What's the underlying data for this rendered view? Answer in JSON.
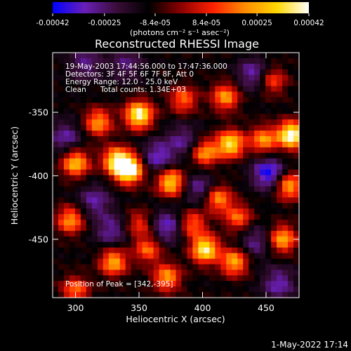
{
  "colorbar": {
    "tick_labels": [
      "-0.00042",
      "-0.00025",
      "-8.4e-05",
      "8.4e-05",
      "0.00025",
      "0.00042"
    ],
    "tick_values": [
      -0.00042,
      -0.00025,
      -8.4e-05,
      8.4e-05,
      0.00025,
      0.00042
    ],
    "range": [
      -0.00042,
      0.00042
    ],
    "units_label": "(photons cm⁻² s⁻¹ asec⁻²)",
    "colormap": [
      "#0000ff",
      "#6a1fb8",
      "#3a0d38",
      "#000000",
      "#8a0000",
      "#ff2000",
      "#ff8c00",
      "#ffd700",
      "#ffffff"
    ]
  },
  "chart_data": {
    "type": "heatmap",
    "title": "Reconstructed RHESSI Image",
    "xlabel": "Heliocentric X (arcsec)",
    "ylabel": "Heliocentric Y (arcsec)",
    "xlim": [
      282,
      476
    ],
    "ylim": [
      -496,
      -303
    ],
    "x_ticks": [
      300,
      350,
      400,
      450
    ],
    "x_tick_labels": [
      "300",
      "350",
      "400",
      "450"
    ],
    "y_ticks": [
      -350,
      -400,
      -450
    ],
    "y_tick_labels": [
      "-350",
      "-400",
      "-450"
    ],
    "grid": false,
    "annotations": {
      "time_range": "19-May-2003 17:44:56.000 to 17:47:36.000",
      "detectors": "Detectors: 3F 4F 5F 6F 7F 8F, Att 0",
      "energy": "Energy Range: 12.0 - 25.0 keV",
      "method": "Clean",
      "counts": "Total counts: 1.34E+03",
      "peak": "Position of Peak = [342,-395]"
    },
    "peak_position": [
      342,
      -395
    ],
    "hotspots": [
      {
        "x": 342,
        "y": -395,
        "v": 1.0
      },
      {
        "x": 332,
        "y": -388,
        "v": 0.7
      },
      {
        "x": 350,
        "y": -352,
        "v": 0.85
      },
      {
        "x": 300,
        "y": -390,
        "v": 0.65
      },
      {
        "x": 296,
        "y": -435,
        "v": 0.55
      },
      {
        "x": 318,
        "y": -358,
        "v": 0.55
      },
      {
        "x": 375,
        "y": -405,
        "v": 0.7
      },
      {
        "x": 385,
        "y": -340,
        "v": 0.45
      },
      {
        "x": 418,
        "y": -338,
        "v": 0.55
      },
      {
        "x": 470,
        "y": -368,
        "v": 0.9
      },
      {
        "x": 448,
        "y": -372,
        "v": 0.55
      },
      {
        "x": 422,
        "y": -375,
        "v": 0.75
      },
      {
        "x": 402,
        "y": -382,
        "v": 0.55
      },
      {
        "x": 412,
        "y": -418,
        "v": 0.55
      },
      {
        "x": 392,
        "y": -438,
        "v": 0.45
      },
      {
        "x": 428,
        "y": -433,
        "v": 0.45
      },
      {
        "x": 468,
        "y": -408,
        "v": 0.6
      },
      {
        "x": 463,
        "y": -450,
        "v": 0.6
      },
      {
        "x": 350,
        "y": -438,
        "v": 0.35
      },
      {
        "x": 402,
        "y": -458,
        "v": 0.8
      },
      {
        "x": 425,
        "y": -468,
        "v": 0.6
      },
      {
        "x": 330,
        "y": -468,
        "v": 0.6
      },
      {
        "x": 372,
        "y": -480,
        "v": 0.55
      },
      {
        "x": 300,
        "y": -490,
        "v": 0.45
      },
      {
        "x": 357,
        "y": -458,
        "v": 0.45
      },
      {
        "x": 455,
        "y": -325,
        "v": 0.4
      }
    ],
    "coldspots": [
      {
        "x": 365,
        "y": -385,
        "v": -0.6
      },
      {
        "x": 452,
        "y": -398,
        "v": -0.8
      },
      {
        "x": 372,
        "y": -440,
        "v": -0.6
      },
      {
        "x": 440,
        "y": -320,
        "v": -0.55
      },
      {
        "x": 292,
        "y": -370,
        "v": -0.5
      },
      {
        "x": 328,
        "y": -443,
        "v": -0.5
      },
      {
        "x": 460,
        "y": -485,
        "v": -0.55
      },
      {
        "x": 315,
        "y": -420,
        "v": -0.5
      },
      {
        "x": 308,
        "y": -312,
        "v": -0.45
      },
      {
        "x": 398,
        "y": -410,
        "v": -0.5
      },
      {
        "x": 442,
        "y": -452,
        "v": -0.45
      },
      {
        "x": 385,
        "y": -372,
        "v": -0.45
      },
      {
        "x": 340,
        "y": -312,
        "v": -0.4
      }
    ],
    "base_level": -0.25
  },
  "footer": {
    "timestamp": "1-May-2022 17:14"
  }
}
